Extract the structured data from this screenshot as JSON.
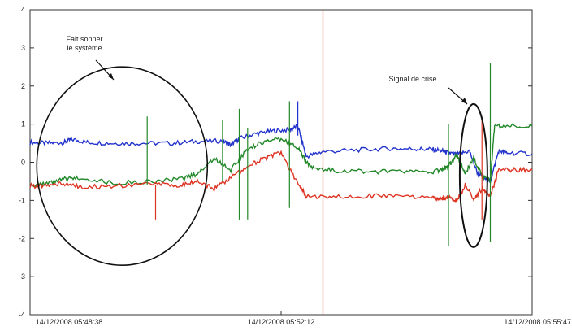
{
  "chart_data": {
    "type": "line",
    "x_tick_labels": [
      "14/12/2008 05:48:38",
      "14/12/2008 05:52:12",
      "14/12/2008 05:55:47"
    ],
    "ylim": [
      -4,
      4
    ],
    "y_ticks": [
      "-4",
      "-3",
      "-2",
      "-1",
      "0",
      "1",
      "2",
      "3",
      "4"
    ],
    "grid": false,
    "series": [
      {
        "color": "#2233cc",
        "label": "blue",
        "points": [
          [
            0,
            0.52
          ],
          [
            0.04,
            0.5
          ],
          [
            0.08,
            0.52
          ],
          [
            0.1,
            0.6
          ],
          [
            0.14,
            0.52
          ],
          [
            0.2,
            0.5
          ],
          [
            0.26,
            0.5
          ],
          [
            0.34,
            0.5
          ],
          [
            0.4,
            0.55
          ],
          [
            0.46,
            0.56
          ],
          [
            0.48,
            0.45
          ],
          [
            0.5,
            0.62
          ],
          [
            0.54,
            0.75
          ],
          [
            0.58,
            0.82
          ],
          [
            0.62,
            0.85
          ],
          [
            0.64,
            0.95
          ],
          [
            0.66,
            0.15
          ],
          [
            0.7,
            0.28
          ],
          [
            0.78,
            0.32
          ],
          [
            0.86,
            0.36
          ],
          [
            0.92,
            0.35
          ],
          [
            0.96,
            0.34
          ],
          [
            0.985,
            0.3
          ],
          [
            1.0,
            0.25
          ],
          [
            1.02,
            0.2
          ],
          [
            1.05,
            0.3
          ],
          [
            1.07,
            -0.3
          ],
          [
            1.09,
            -0.45
          ],
          [
            1.1,
            -0.5
          ],
          [
            1.12,
            0.3
          ],
          [
            1.14,
            0.25
          ],
          [
            1.2,
            0.22
          ]
        ]
      },
      {
        "color": "#22882a",
        "label": "green",
        "points": [
          [
            0,
            -0.6
          ],
          [
            0.04,
            -0.58
          ],
          [
            0.08,
            -0.45
          ],
          [
            0.12,
            -0.4
          ],
          [
            0.2,
            -0.55
          ],
          [
            0.3,
            -0.5
          ],
          [
            0.36,
            -0.45
          ],
          [
            0.4,
            -0.3
          ],
          [
            0.44,
            0.1
          ],
          [
            0.48,
            -0.2
          ],
          [
            0.52,
            0.35
          ],
          [
            0.56,
            0.55
          ],
          [
            0.6,
            0.6
          ],
          [
            0.64,
            0.4
          ],
          [
            0.66,
            0.0
          ],
          [
            0.68,
            -0.18
          ],
          [
            0.74,
            -0.22
          ],
          [
            0.82,
            -0.25
          ],
          [
            0.9,
            -0.25
          ],
          [
            0.96,
            -0.25
          ],
          [
            0.985,
            -0.2
          ],
          [
            1.0,
            -0.1
          ],
          [
            1.02,
            0.2
          ],
          [
            1.04,
            -0.3
          ],
          [
            1.06,
            0.1
          ],
          [
            1.08,
            -0.35
          ],
          [
            1.1,
            -0.5
          ],
          [
            1.11,
            0.95
          ],
          [
            1.14,
            0.95
          ],
          [
            1.2,
            0.95
          ]
        ]
      },
      {
        "color": "#dd3322",
        "label": "red",
        "points": [
          [
            0,
            -0.62
          ],
          [
            0.04,
            -0.62
          ],
          [
            0.08,
            -0.55
          ],
          [
            0.12,
            -0.65
          ],
          [
            0.2,
            -0.62
          ],
          [
            0.3,
            -0.58
          ],
          [
            0.36,
            -0.6
          ],
          [
            0.4,
            -0.5
          ],
          [
            0.44,
            -0.7
          ],
          [
            0.48,
            -0.4
          ],
          [
            0.52,
            -0.1
          ],
          [
            0.56,
            0.1
          ],
          [
            0.6,
            0.25
          ],
          [
            0.64,
            -0.55
          ],
          [
            0.66,
            -0.9
          ],
          [
            0.72,
            -0.9
          ],
          [
            0.8,
            -0.88
          ],
          [
            0.88,
            -0.9
          ],
          [
            0.96,
            -0.92
          ],
          [
            0.985,
            -0.95
          ],
          [
            1.0,
            -0.9
          ],
          [
            1.02,
            -1.0
          ],
          [
            1.04,
            -0.6
          ],
          [
            1.06,
            -0.95
          ],
          [
            1.08,
            -0.7
          ],
          [
            1.1,
            -0.9
          ],
          [
            1.12,
            -0.2
          ],
          [
            1.16,
            -0.2
          ],
          [
            1.2,
            -0.2
          ]
        ]
      }
    ],
    "annotations": [
      {
        "text_lines": [
          "Fait sonner",
          "le système"
        ]
      },
      {
        "text_lines": [
          "Signal de crise"
        ]
      }
    ]
  }
}
